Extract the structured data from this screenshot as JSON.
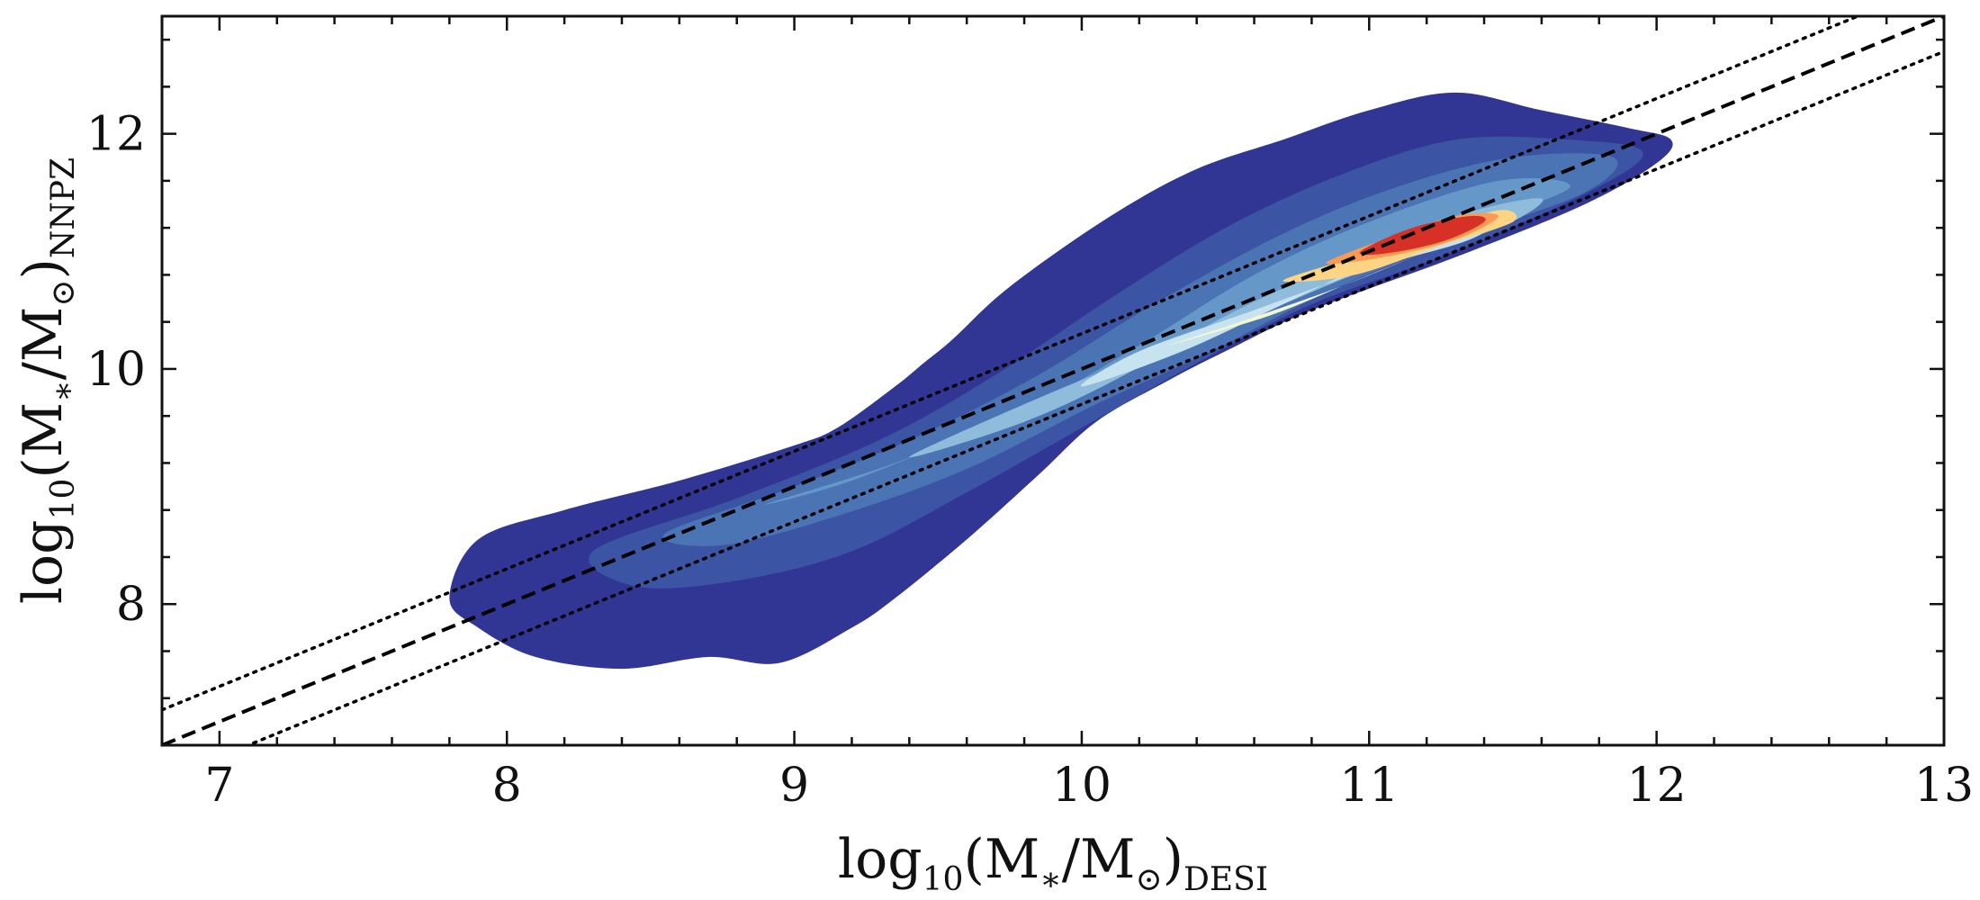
{
  "chart_data": {
    "type": "contour",
    "x_label": {
      "base": "log",
      "base_sub": "10",
      "body": "(M",
      "star": "∗",
      "slash": "/M",
      "sun": "⊙",
      "close": ")",
      "subscript": "DESI"
    },
    "y_label": {
      "base": "log",
      "base_sub": "10",
      "body": "(M",
      "star": "∗",
      "slash": "/M",
      "sun": "⊙",
      "close": ")",
      "subscript": "NNPZ"
    },
    "xlim": [
      6.8,
      13.0
    ],
    "ylim": [
      6.8,
      13.0
    ],
    "x_ticks": [
      "7",
      "8",
      "9",
      "10",
      "11",
      "12",
      "13"
    ],
    "x_tick_values": [
      7,
      8,
      9,
      10,
      11,
      12,
      13
    ],
    "y_ticks": [
      "8",
      "10",
      "12"
    ],
    "y_tick_values": [
      8,
      10,
      12
    ],
    "minor_tick_step": 0.2,
    "y_minor_tick_step": 0.4,
    "grid": false,
    "lines": [
      {
        "name": "one-to-one",
        "style": "dashed",
        "slope": 1,
        "offset": 0.0,
        "color": "#000000"
      },
      {
        "name": "upper-bound",
        "style": "dotted",
        "slope": 1,
        "offset": 0.3,
        "color": "#000000"
      },
      {
        "name": "lower-bound",
        "style": "dotted",
        "slope": 1,
        "offset": -0.3,
        "color": "#000000"
      }
    ],
    "density_contours": [
      {
        "level": 1,
        "color": "#313695",
        "outline": [
          [
            7.8,
            8.05
          ],
          [
            7.9,
            8.55
          ],
          [
            8.2,
            8.8
          ],
          [
            8.6,
            9.05
          ],
          [
            9.0,
            9.35
          ],
          [
            9.15,
            9.5
          ],
          [
            9.35,
            9.85
          ],
          [
            9.45,
            10.05
          ],
          [
            9.55,
            10.25
          ],
          [
            9.75,
            10.7
          ],
          [
            10.1,
            11.3
          ],
          [
            10.4,
            11.7
          ],
          [
            10.7,
            11.95
          ],
          [
            11.0,
            12.2
          ],
          [
            11.3,
            12.35
          ],
          [
            11.6,
            12.2
          ],
          [
            11.9,
            12.05
          ],
          [
            12.05,
            11.95
          ],
          [
            12.0,
            11.75
          ],
          [
            11.75,
            11.4
          ],
          [
            11.3,
            10.95
          ],
          [
            10.8,
            10.5
          ],
          [
            10.5,
            10.15
          ],
          [
            10.3,
            9.9
          ],
          [
            10.05,
            9.55
          ],
          [
            9.85,
            9.1
          ],
          [
            9.6,
            8.55
          ],
          [
            9.35,
            8.05
          ],
          [
            9.2,
            7.8
          ],
          [
            8.95,
            7.5
          ],
          [
            8.7,
            7.55
          ],
          [
            8.4,
            7.45
          ],
          [
            8.1,
            7.55
          ],
          [
            7.9,
            7.8
          ]
        ]
      },
      {
        "level": 2,
        "color": "#3b54a4",
        "outline": [
          [
            8.3,
            8.45
          ],
          [
            8.8,
            8.9
          ],
          [
            9.3,
            9.4
          ],
          [
            9.7,
            9.95
          ],
          [
            10.1,
            10.6
          ],
          [
            10.5,
            11.2
          ],
          [
            10.9,
            11.65
          ],
          [
            11.3,
            11.95
          ],
          [
            11.7,
            11.95
          ],
          [
            11.95,
            11.85
          ],
          [
            11.8,
            11.55
          ],
          [
            11.3,
            11.0
          ],
          [
            10.8,
            10.55
          ],
          [
            10.4,
            10.05
          ],
          [
            10.0,
            9.5
          ],
          [
            9.6,
            8.95
          ],
          [
            9.2,
            8.45
          ],
          [
            8.8,
            8.2
          ],
          [
            8.45,
            8.15
          ]
        ]
      },
      {
        "level": 3,
        "color": "#4a74b4",
        "outline": [
          [
            8.55,
            8.6
          ],
          [
            9.0,
            9.0
          ],
          [
            9.45,
            9.45
          ],
          [
            9.85,
            9.95
          ],
          [
            10.25,
            10.55
          ],
          [
            10.7,
            11.15
          ],
          [
            11.1,
            11.55
          ],
          [
            11.5,
            11.8
          ],
          [
            11.85,
            11.8
          ],
          [
            11.75,
            11.5
          ],
          [
            11.3,
            11.1
          ],
          [
            10.85,
            10.65
          ],
          [
            10.45,
            10.15
          ],
          [
            10.05,
            9.7
          ],
          [
            9.6,
            9.15
          ],
          [
            9.15,
            8.75
          ],
          [
            8.75,
            8.5
          ]
        ]
      },
      {
        "level": 4,
        "color": "#6597c8",
        "outline": [
          [
            8.9,
            8.85
          ],
          [
            9.35,
            9.2
          ],
          [
            9.8,
            9.65
          ],
          [
            10.2,
            10.2
          ],
          [
            10.6,
            10.8
          ],
          [
            11.0,
            11.25
          ],
          [
            11.45,
            11.6
          ],
          [
            11.7,
            11.55
          ],
          [
            11.4,
            11.25
          ],
          [
            10.95,
            10.85
          ],
          [
            10.5,
            10.4
          ],
          [
            10.1,
            10.0
          ],
          [
            9.65,
            9.5
          ],
          [
            9.2,
            9.05
          ]
        ]
      },
      {
        "level": 5,
        "color": "#8fbcdb",
        "outline": [
          [
            9.4,
            9.25
          ],
          [
            9.8,
            9.55
          ],
          [
            10.15,
            9.95
          ],
          [
            10.5,
            10.45
          ],
          [
            10.9,
            10.9
          ],
          [
            11.3,
            11.3
          ],
          [
            11.6,
            11.45
          ],
          [
            11.45,
            11.2
          ],
          [
            11.0,
            10.85
          ],
          [
            10.6,
            10.45
          ],
          [
            10.2,
            10.1
          ],
          [
            9.8,
            9.7
          ]
        ]
      },
      {
        "level": 6,
        "color": "#c7e3ef",
        "outline": [
          [
            10.0,
            9.85
          ],
          [
            10.35,
            10.15
          ],
          [
            10.7,
            10.55
          ],
          [
            11.05,
            10.95
          ],
          [
            11.45,
            11.3
          ],
          [
            11.35,
            11.1
          ],
          [
            11.0,
            10.85
          ],
          [
            10.6,
            10.5
          ],
          [
            10.2,
            10.15
          ]
        ]
      },
      {
        "level": 7,
        "color": "#f2f7cf",
        "outline": [
          [
            10.3,
            10.2
          ],
          [
            10.65,
            10.45
          ],
          [
            10.95,
            10.75
          ],
          [
            11.25,
            11.05
          ],
          [
            11.4,
            11.2
          ],
          [
            11.2,
            11.0
          ],
          [
            10.9,
            10.7
          ],
          [
            10.55,
            10.4
          ]
        ]
      },
      {
        "level": 8,
        "color": "#fdd384",
        "outline": [
          [
            10.7,
            10.75
          ],
          [
            10.95,
            10.95
          ],
          [
            11.2,
            11.15
          ],
          [
            11.45,
            11.35
          ],
          [
            11.5,
            11.25
          ],
          [
            11.25,
            11.05
          ],
          [
            10.95,
            10.8
          ]
        ]
      },
      {
        "level": 9,
        "color": "#f99a55",
        "outline": [
          [
            10.85,
            10.9
          ],
          [
            11.05,
            11.1
          ],
          [
            11.3,
            11.3
          ],
          [
            11.45,
            11.3
          ],
          [
            11.3,
            11.1
          ],
          [
            11.05,
            10.95
          ]
        ]
      },
      {
        "level": 10,
        "color": "#d73027",
        "outline": [
          [
            10.97,
            11.0
          ],
          [
            11.15,
            11.2
          ],
          [
            11.35,
            11.3
          ],
          [
            11.4,
            11.25
          ],
          [
            11.25,
            11.08
          ],
          [
            11.05,
            10.98
          ]
        ]
      }
    ]
  }
}
